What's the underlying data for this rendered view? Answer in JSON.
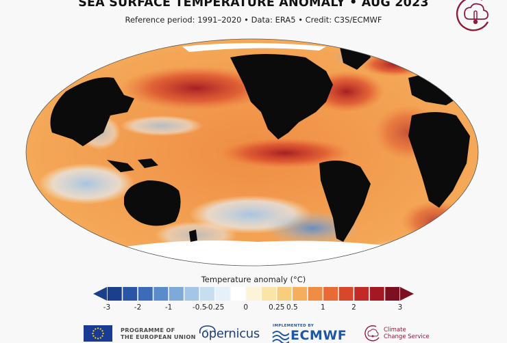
{
  "header": {
    "title": "SEA SURFACE TEMPERATURE ANOMALY • AUG 2023",
    "subtitle": "Reference period: 1991–2020 • Data: ERA5 • Credit: C3S/ECMWF"
  },
  "legend": {
    "title": "Temperature anomaly (°C)",
    "ticks": [
      "-3",
      "-2",
      "-1",
      "-0.5",
      "-0.25",
      "0",
      "0.25",
      "0.5",
      "1",
      "2",
      "3"
    ],
    "colors": [
      "#1b3f8a",
      "#2b56a6",
      "#3c6bb8",
      "#5a8ccb",
      "#7eaad9",
      "#a3c6e6",
      "#c7ddf0",
      "#e6f0f8",
      "#ffffff",
      "#fdf3d8",
      "#fbe4a8",
      "#f8cd7c",
      "#f5ae5c",
      "#ef8d45",
      "#e86a35",
      "#d9472a",
      "#c22a25",
      "#a31822",
      "#7c1020"
    ]
  },
  "footer": {
    "programme": [
      "PROGRAMME OF",
      "THE EUROPEAN UNION"
    ],
    "copernicus": "opernicus",
    "implemented": "IMPLEMENTED BY",
    "ecmwf": "ECMWF",
    "c3s": [
      "Climate",
      "Change Service"
    ]
  },
  "map": {
    "land_color": "#0b0b0b",
    "ice_color": "#ffffff"
  }
}
